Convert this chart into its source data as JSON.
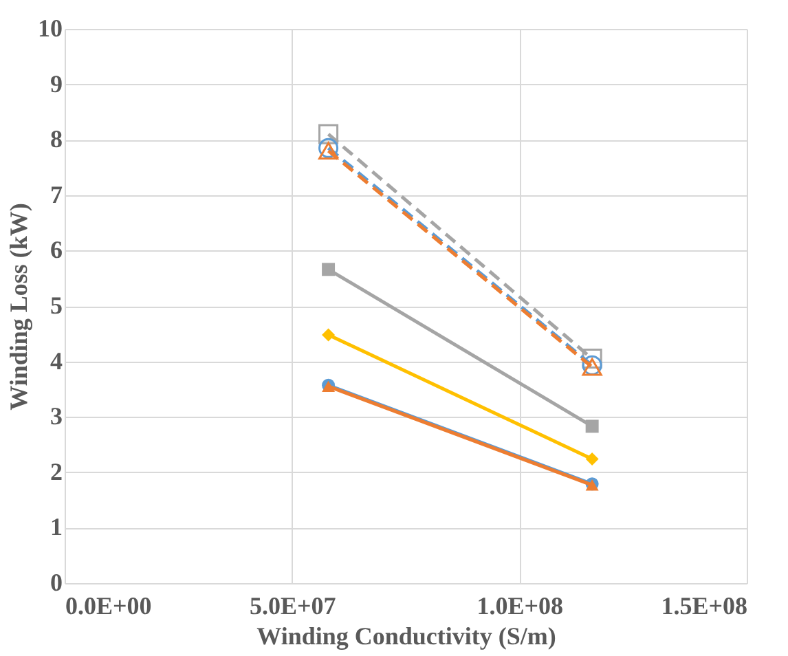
{
  "chart_data": {
    "type": "line",
    "xlabel": "Winding Conductivity (S/m)",
    "ylabel": "Winding Loss (kW)",
    "xlim": [
      0,
      150000000
    ],
    "xticks": [
      {
        "value": 0,
        "label": "0.0E+00"
      },
      {
        "value": 50000000,
        "label": "5.0E+07"
      },
      {
        "value": 100000000,
        "label": "1.0E+08"
      },
      {
        "value": 150000000,
        "label": "1.5E+08"
      }
    ],
    "ylim": [
      0,
      10
    ],
    "yticks": [
      0,
      1,
      2,
      3,
      4,
      5,
      6,
      7,
      8,
      9,
      10
    ],
    "grid": true,
    "x": [
      58000000,
      116000000
    ],
    "series": [
      {
        "color": "#a5a5a5",
        "values": [
          8.1,
          4.05
        ],
        "marker": "square",
        "line_style": "dashed"
      },
      {
        "color": "#5b9bd5",
        "values": [
          7.85,
          3.93
        ],
        "marker": "circle",
        "line_style": "dashed"
      },
      {
        "color": "#ed7d31",
        "values": [
          7.8,
          3.9
        ],
        "marker": "triangle",
        "line_style": "dashed"
      },
      {
        "color": "#a5a5a5",
        "values": [
          5.66,
          2.83
        ],
        "marker": "square",
        "line_style": "solid"
      },
      {
        "color": "#ffc000",
        "values": [
          4.48,
          2.24
        ],
        "marker": "diamond",
        "line_style": "solid"
      },
      {
        "color": "#5b9bd5",
        "values": [
          3.57,
          1.79
        ],
        "marker": "circle",
        "line_style": "solid"
      },
      {
        "color": "#ed7d31",
        "values": [
          3.55,
          1.77
        ],
        "marker": "triangle",
        "line_style": "solid"
      }
    ]
  }
}
